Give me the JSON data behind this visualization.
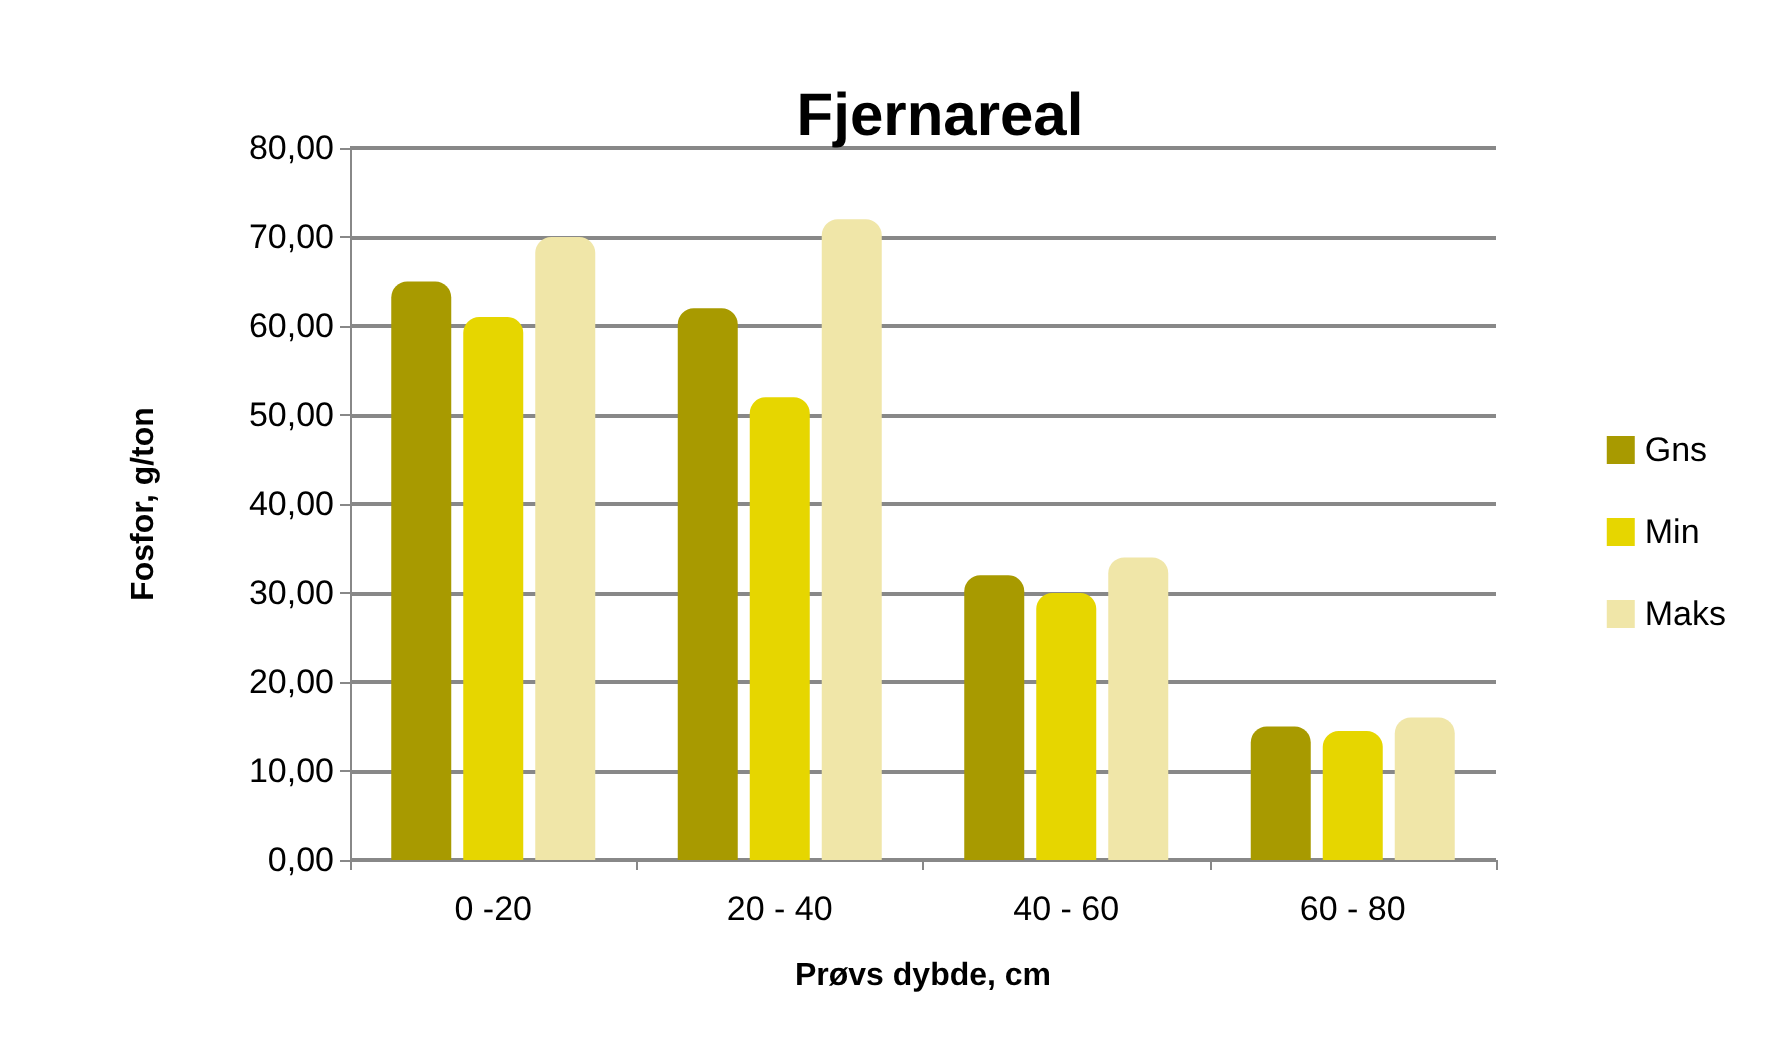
{
  "chart_data": {
    "type": "bar",
    "title": "Fjernareal",
    "xlabel": "Prøvs dybde, cm",
    "ylabel": "Fosfor, g/ton",
    "categories": [
      "0 -20",
      "20 - 40",
      "40 - 60",
      "60 - 80"
    ],
    "series": [
      {
        "name": "Gns",
        "color": "#a89a00",
        "values": [
          65,
          62,
          32,
          15
        ]
      },
      {
        "name": "Min",
        "color": "#e6d600",
        "values": [
          61,
          52,
          30,
          14.5
        ]
      },
      {
        "name": "Maks",
        "color": "#f0e6a8",
        "values": [
          70,
          72,
          34,
          16
        ]
      }
    ],
    "ylim": [
      0,
      80
    ],
    "yticks": [
      {
        "value": 0,
        "label": "0,00"
      },
      {
        "value": 10,
        "label": "10,00"
      },
      {
        "value": 20,
        "label": "20,00"
      },
      {
        "value": 30,
        "label": "30,00"
      },
      {
        "value": 40,
        "label": "40,00"
      },
      {
        "value": 50,
        "label": "50,00"
      },
      {
        "value": 60,
        "label": "60,00"
      },
      {
        "value": 70,
        "label": "70,00"
      },
      {
        "value": 80,
        "label": "80,00"
      }
    ],
    "grid": "y",
    "legend": "right"
  }
}
